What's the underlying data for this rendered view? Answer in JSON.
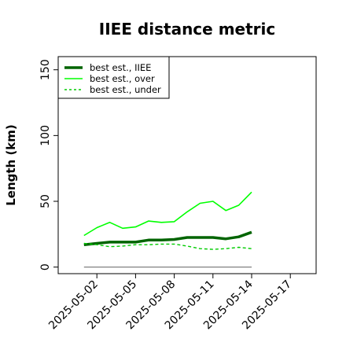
{
  "chart_data": {
    "type": "line",
    "title": "IIEE distance metric",
    "xlabel": "",
    "ylabel": "Length (km)",
    "x_ticks": [
      "2025-05-02",
      "2025-05-05",
      "2025-05-08",
      "2025-05-11",
      "2025-05-14",
      "2025-05-17"
    ],
    "y_ticks": [
      "0",
      "50",
      "100",
      "150"
    ],
    "xlim": [
      "2025-04-29",
      "2025-05-19"
    ],
    "ylim": [
      -5,
      160
    ],
    "grid": false,
    "legend_position": "top-left",
    "x": [
      "2025-05-01",
      "2025-05-02",
      "2025-05-03",
      "2025-05-04",
      "2025-05-05",
      "2025-05-06",
      "2025-05-07",
      "2025-05-08",
      "2025-05-09",
      "2025-05-10",
      "2025-05-11",
      "2025-05-12",
      "2025-05-13",
      "2025-05-14"
    ],
    "series": [
      {
        "name": "best est., IIEE",
        "color": "#006400",
        "style": "solid-thick",
        "values": [
          17,
          18,
          19,
          19,
          19,
          20.5,
          20.5,
          21,
          22.5,
          22.5,
          22.5,
          21.5,
          23,
          26.5
        ]
      },
      {
        "name": "best est., over",
        "color": "#00ff00",
        "style": "solid",
        "values": [
          24,
          30,
          34,
          29.5,
          30.5,
          35,
          34,
          34.5,
          42,
          48.5,
          50,
          43,
          47,
          57
        ]
      },
      {
        "name": "best est., under",
        "color": "#00cc00",
        "style": "dashed",
        "values": [
          18,
          17,
          15.5,
          16,
          17,
          17,
          17.5,
          17.5,
          16,
          14,
          13.5,
          14,
          15,
          14
        ]
      },
      {
        "color": "#808080",
        "style": "thin",
        "values": [
          0,
          0,
          0,
          0,
          0,
          0,
          0,
          0,
          0,
          0,
          0,
          0,
          0,
          0
        ]
      }
    ]
  }
}
